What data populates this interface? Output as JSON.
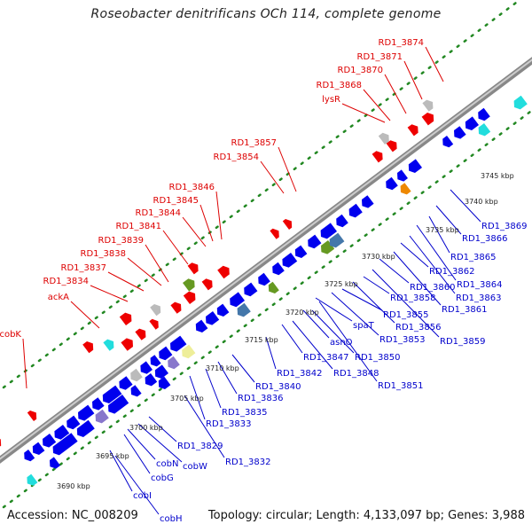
{
  "title": "Roseobacter denitrificans OCh 114, complete genome",
  "footer": {
    "accession": "Accession: NC_008209",
    "topology": "Topology: circular; Length: 4,133,097 bp; Genes: 3,988"
  },
  "colors": {
    "forward_label": "#dd0000",
    "reverse_label": "#0000cc",
    "backbone": "#888888",
    "ruler_dots": "#228822",
    "gene_red": "#ee0000",
    "gene_blue": "#0000ee",
    "gene_gray": "#bbbbbb",
    "gene_cyan": "#22dddd",
    "gene_green": "#669922",
    "gene_steelblue": "#4477aa",
    "gene_orange": "#ee8800",
    "gene_khaki": "#eeee99",
    "gene_purple": "#8877cc"
  },
  "forward_labels": [
    "RD1_3874",
    "RD1_3871",
    "RD1_3870",
    "RD1_3868",
    "lysR",
    "RD1_3857",
    "RD1_3854",
    "RD1_3846",
    "RD1_3845",
    "RD1_3844",
    "RD1_3841",
    "RD1_3839",
    "RD1_3838",
    "RD1_3837",
    "RD1_3834",
    "ackA",
    "cobK"
  ],
  "reverse_labels": [
    "RD1_3869",
    "RD1_3866",
    "RD1_3865",
    "RD1_3864",
    "RD1_3863",
    "RD1_3862",
    "RD1_3861",
    "RD1_3860",
    "RD1_3859",
    "RD1_3858",
    "RD1_3856",
    "RD1_3855",
    "RD1_3853",
    "RD1_3851",
    "RD1_3850",
    "spaT",
    "asnO",
    "RD1_3848",
    "RD1_3847",
    "RD1_3842",
    "RD1_3840",
    "RD1_3836",
    "RD1_3835",
    "RD1_3833",
    "RD1_3832",
    "RD1_3829",
    "cobW",
    "cobN",
    "cobG",
    "cobI",
    "cobH"
  ],
  "ruler_ticks": [
    "3745 kbp",
    "3740 kbp",
    "3735 kbp",
    "3730 kbp",
    "3725 kbp",
    "3720 kbp",
    "3715 kbp",
    "3710 kbp",
    "3705 kbp",
    "3700 kbp",
    "3695 kbp",
    "3690 kbp"
  ]
}
